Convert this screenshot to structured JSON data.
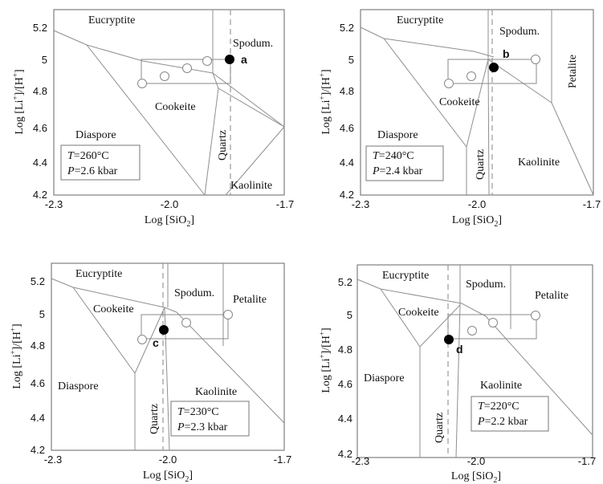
{
  "panels": [
    {
      "id": "a",
      "tag": "a",
      "temperature": "=260°C",
      "pressure": "=2.6 kbar",
      "fields": [
        "Eucryptite",
        "Spodum.",
        "Cookeite",
        "Diaspore",
        "Quartz",
        "Kaolinite"
      ],
      "x_ticks": [
        "-2.3",
        "-2.0",
        "-1.7"
      ],
      "y_ticks": [
        "5.2",
        "5",
        "4.8",
        "4.6",
        "4.4",
        "4.2"
      ],
      "measured_point": {
        "log_sio2": -1.89,
        "log_li_h": 5.0
      },
      "reference_points": [
        {
          "log_sio2": -2.12,
          "log_li_h": 4.86
        },
        {
          "log_sio2": -2.03,
          "log_li_h": 4.91
        },
        {
          "log_sio2": -1.98,
          "log_li_h": 4.95
        },
        {
          "log_sio2": -1.89,
          "log_li_h": 5.0
        }
      ]
    },
    {
      "id": "b",
      "tag": "b",
      "temperature": "=240°C",
      "pressure": "=2.4 kbar",
      "fields": [
        "Eucryptite",
        "Spodum.",
        "Petalite",
        "Cookeite",
        "Diaspore",
        "Quartz",
        "Kaolinite"
      ],
      "x_ticks": [
        "-2.3",
        "-2.0",
        "-1.7"
      ],
      "y_ticks": [
        "5.2",
        "5",
        "4.8",
        "4.6",
        "4.4",
        "4.2"
      ],
      "measured_point": {
        "log_sio2": -1.96,
        "log_li_h": 4.95
      },
      "reference_points": [
        {
          "log_sio2": -2.12,
          "log_li_h": 4.86
        },
        {
          "log_sio2": -2.03,
          "log_li_h": 4.91
        },
        {
          "log_sio2": -1.98,
          "log_li_h": 4.95
        },
        {
          "log_sio2": -1.89,
          "log_li_h": 5.0
        }
      ]
    },
    {
      "id": "c",
      "tag": "c",
      "temperature": "=230°C",
      "pressure": "=2.3 kbar",
      "fields": [
        "Eucryptite",
        "Spodum.",
        "Petalite",
        "Cookeite",
        "Diaspore",
        "Quartz",
        "Kaolinite"
      ],
      "x_ticks": [
        "-2.3",
        "-2.0",
        "-1.7"
      ],
      "y_ticks": [
        "5.2",
        "5",
        "4.8",
        "4.6",
        "4.4",
        "4.2"
      ],
      "measured_point": {
        "log_sio2": -2.02,
        "log_li_h": 4.9
      },
      "reference_points": [
        {
          "log_sio2": -2.12,
          "log_li_h": 4.86
        },
        {
          "log_sio2": -1.98,
          "log_li_h": 4.95
        },
        {
          "log_sio2": -1.89,
          "log_li_h": 5.0
        }
      ]
    },
    {
      "id": "d",
      "tag": "d",
      "temperature": "=220°C",
      "pressure": "=2.2 kbar",
      "fields": [
        "Eucryptite",
        "Spodum.",
        "Petalite",
        "Cookeite",
        "Diaspore",
        "Quartz",
        "Kaolinite"
      ],
      "x_ticks": [
        "-2.3",
        "-2.0",
        "-1.7"
      ],
      "y_ticks": [
        "5.2",
        "5",
        "4.8",
        "4.6",
        "4.4",
        "4.2"
      ],
      "measured_point": {
        "log_sio2": -2.12,
        "log_li_h": 4.85
      },
      "reference_points": [
        {
          "log_sio2": -2.03,
          "log_li_h": 4.91
        },
        {
          "log_sio2": -1.98,
          "log_li_h": 4.95
        },
        {
          "log_sio2": -1.89,
          "log_li_h": 5.0
        }
      ]
    }
  ],
  "labels": {
    "x_axis_prefix": "Log [SiO",
    "x_axis_sub": "2",
    "x_axis_suffix": "]",
    "y_axis_prefix": "Log [Li",
    "y_axis_sup1": "+",
    "y_axis_mid": "]/[H",
    "y_axis_sup2": "+",
    "y_axis_suffix": "]",
    "T_symbol": "T",
    "P_symbol": "P"
  },
  "colors": {
    "boundary": "#8f8f8f",
    "measured": "#000000",
    "reference": "#ffffff"
  }
}
